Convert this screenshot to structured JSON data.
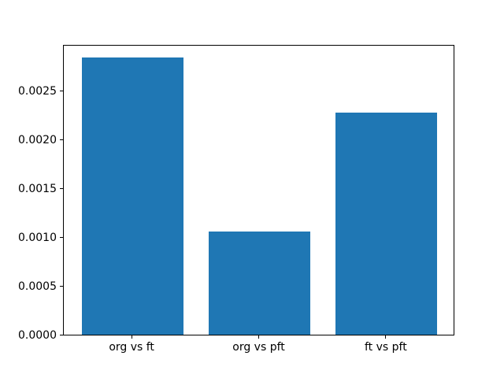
{
  "chart_data": {
    "type": "bar",
    "title": "",
    "xlabel": "",
    "ylabel": "",
    "categories": [
      "org vs ft",
      "org vs pft",
      "ft vs pft"
    ],
    "values": [
      0.00284,
      0.00106,
      0.00228
    ],
    "ylim": [
      0,
      0.00298
    ],
    "yticks": [
      0.0,
      0.0005,
      0.001,
      0.0015,
      0.002,
      0.0025
    ],
    "ytick_labels": [
      "0.0000",
      "0.0005",
      "0.0010",
      "0.0015",
      "0.0020",
      "0.0025"
    ],
    "grid": false,
    "legend": null,
    "bar_color": "#1f77b4",
    "spine_color": "#000000",
    "background_color": "#ffffff",
    "bar_width_fraction": 0.8
  }
}
